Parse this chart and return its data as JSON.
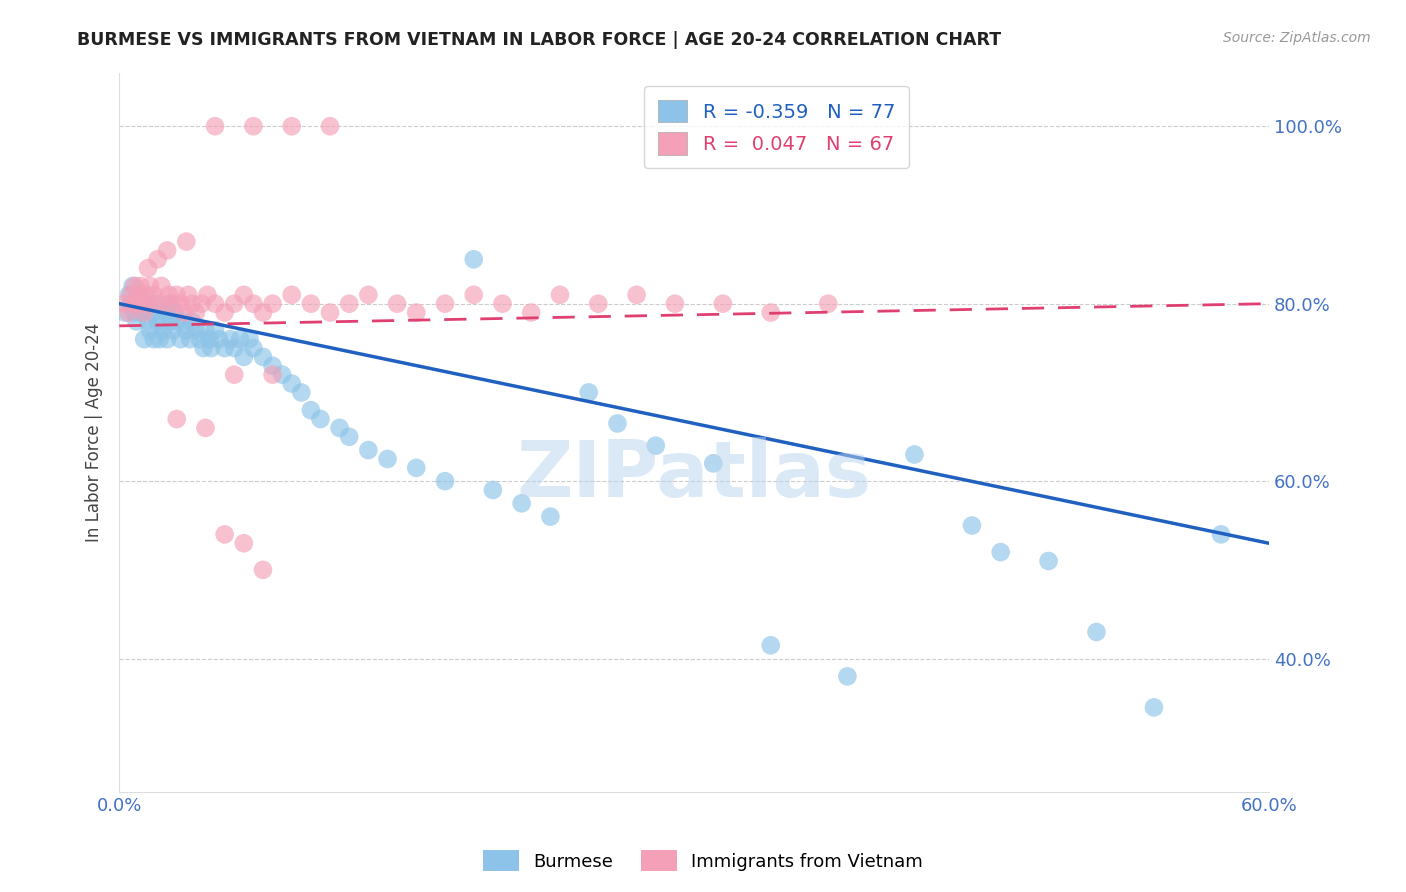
{
  "title": "BURMESE VS IMMIGRANTS FROM VIETNAM IN LABOR FORCE | AGE 20-24 CORRELATION CHART",
  "source": "Source: ZipAtlas.com",
  "ylabel": "In Labor Force | Age 20-24",
  "xlim": [
    0.0,
    0.6
  ],
  "ylim": [
    0.25,
    1.06
  ],
  "yticks": [
    0.4,
    0.6,
    0.8,
    1.0
  ],
  "ytick_labels": [
    "40.0%",
    "60.0%",
    "80.0%",
    "100.0%"
  ],
  "xticks": [
    0.0,
    0.1,
    0.2,
    0.3,
    0.4,
    0.5,
    0.6
  ],
  "xtick_labels": [
    "0.0%",
    "",
    "",
    "",
    "",
    "",
    "60.0%"
  ],
  "blue_color": "#8DC3E8",
  "pink_color": "#F4A0B8",
  "line_blue": "#2060C0",
  "line_pink": "#E04070",
  "legend_R_blue": "-0.359",
  "legend_N_blue": "77",
  "legend_R_pink": "0.047",
  "legend_N_pink": "67",
  "watermark": "ZIPatlas",
  "blue_scatter_x": [
    0.003,
    0.005,
    0.006,
    0.007,
    0.008,
    0.009,
    0.01,
    0.011,
    0.012,
    0.013,
    0.014,
    0.015,
    0.016,
    0.017,
    0.018,
    0.019,
    0.02,
    0.021,
    0.022,
    0.023,
    0.024,
    0.025,
    0.026,
    0.027,
    0.028,
    0.029,
    0.03,
    0.032,
    0.034,
    0.035,
    0.037,
    0.038,
    0.04,
    0.042,
    0.044,
    0.045,
    0.047,
    0.048,
    0.05,
    0.052,
    0.055,
    0.058,
    0.06,
    0.063,
    0.065,
    0.068,
    0.07,
    0.075,
    0.08,
    0.085,
    0.09,
    0.095,
    0.1,
    0.105,
    0.115,
    0.12,
    0.13,
    0.14,
    0.155,
    0.17,
    0.185,
    0.195,
    0.21,
    0.225,
    0.245,
    0.26,
    0.28,
    0.31,
    0.34,
    0.38,
    0.415,
    0.445,
    0.46,
    0.485,
    0.51,
    0.54,
    0.575
  ],
  "blue_scatter_y": [
    0.79,
    0.81,
    0.8,
    0.82,
    0.79,
    0.78,
    0.8,
    0.81,
    0.79,
    0.76,
    0.8,
    0.78,
    0.77,
    0.79,
    0.76,
    0.8,
    0.78,
    0.76,
    0.78,
    0.77,
    0.79,
    0.76,
    0.8,
    0.78,
    0.77,
    0.79,
    0.78,
    0.76,
    0.78,
    0.77,
    0.76,
    0.78,
    0.77,
    0.76,
    0.75,
    0.77,
    0.76,
    0.75,
    0.77,
    0.76,
    0.75,
    0.76,
    0.75,
    0.76,
    0.74,
    0.76,
    0.75,
    0.74,
    0.73,
    0.72,
    0.71,
    0.7,
    0.68,
    0.67,
    0.66,
    0.65,
    0.635,
    0.625,
    0.615,
    0.6,
    0.85,
    0.59,
    0.575,
    0.56,
    0.7,
    0.665,
    0.64,
    0.62,
    0.415,
    0.38,
    0.63,
    0.55,
    0.52,
    0.51,
    0.43,
    0.345,
    0.54
  ],
  "pink_scatter_x": [
    0.003,
    0.005,
    0.006,
    0.007,
    0.008,
    0.009,
    0.01,
    0.011,
    0.012,
    0.013,
    0.014,
    0.015,
    0.016,
    0.018,
    0.02,
    0.022,
    0.024,
    0.026,
    0.028,
    0.03,
    0.032,
    0.034,
    0.036,
    0.038,
    0.04,
    0.043,
    0.046,
    0.05,
    0.055,
    0.06,
    0.065,
    0.07,
    0.075,
    0.08,
    0.09,
    0.1,
    0.11,
    0.12,
    0.13,
    0.145,
    0.155,
    0.17,
    0.185,
    0.2,
    0.215,
    0.23,
    0.25,
    0.27,
    0.29,
    0.315,
    0.34,
    0.37,
    0.05,
    0.07,
    0.09,
    0.11,
    0.02,
    0.035,
    0.015,
    0.025,
    0.06,
    0.08,
    0.03,
    0.045,
    0.055,
    0.065,
    0.075
  ],
  "pink_scatter_y": [
    0.8,
    0.79,
    0.81,
    0.8,
    0.82,
    0.8,
    0.81,
    0.82,
    0.8,
    0.79,
    0.81,
    0.8,
    0.82,
    0.81,
    0.8,
    0.82,
    0.8,
    0.81,
    0.8,
    0.81,
    0.8,
    0.79,
    0.81,
    0.8,
    0.79,
    0.8,
    0.81,
    0.8,
    0.79,
    0.8,
    0.81,
    0.8,
    0.79,
    0.8,
    0.81,
    0.8,
    0.79,
    0.8,
    0.81,
    0.8,
    0.79,
    0.8,
    0.81,
    0.8,
    0.79,
    0.81,
    0.8,
    0.81,
    0.8,
    0.8,
    0.79,
    0.8,
    1.0,
    1.0,
    1.0,
    1.0,
    0.85,
    0.87,
    0.84,
    0.86,
    0.72,
    0.72,
    0.67,
    0.66,
    0.54,
    0.53,
    0.5
  ],
  "blue_line_x": [
    0.0,
    0.6
  ],
  "blue_line_y": [
    0.8,
    0.53
  ],
  "pink_line_x": [
    0.0,
    0.6
  ],
  "pink_line_y": [
    0.775,
    0.8
  ]
}
